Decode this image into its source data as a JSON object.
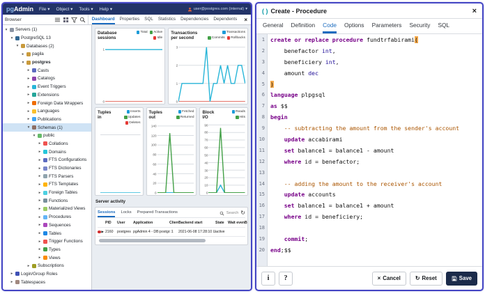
{
  "header": {
    "logo_pg": "pg",
    "logo_admin": "Admin",
    "menus": [
      "File",
      "Object",
      "Tools",
      "Help"
    ],
    "user_label": "user@postgres.com (internal)"
  },
  "browser": {
    "title": "Browser",
    "tabs": [
      "Dashboard",
      "Properties",
      "SQL",
      "Statistics",
      "Dependencies",
      "Dependents"
    ],
    "active_tab": "Dashboard",
    "close": "×"
  },
  "tree": {
    "items": [
      {
        "label": "Servers (1)",
        "depth": 0,
        "state": "o",
        "color": "#8b94a3"
      },
      {
        "label": "PostgreSQL 13",
        "depth": 1,
        "state": "o",
        "color": "#336791"
      },
      {
        "label": "Databases (2)",
        "depth": 2,
        "state": "o",
        "color": "#c99a3c"
      },
      {
        "label": "pagila",
        "depth": 3,
        "state": "c",
        "color": "#c99a3c"
      },
      {
        "label": "postgres",
        "depth": 3,
        "state": "o",
        "color": "#c99a3c",
        "bold": true
      },
      {
        "label": "Casts",
        "depth": 4,
        "state": "c",
        "color": "#5c6bc0"
      },
      {
        "label": "Catalogs",
        "depth": 4,
        "state": "c",
        "color": "#8e44ad"
      },
      {
        "label": "Event Triggers",
        "depth": 4,
        "state": "c",
        "color": "#29b6d8"
      },
      {
        "label": "Extensions",
        "depth": 4,
        "state": "c",
        "color": "#26a69a"
      },
      {
        "label": "Foreign Data Wrappers",
        "depth": 4,
        "state": "c",
        "color": "#ef6c00"
      },
      {
        "label": "Languages",
        "depth": 4,
        "state": "c",
        "color": "#fbc02d"
      },
      {
        "label": "Publications",
        "depth": 4,
        "state": "c",
        "color": "#42a5f5"
      },
      {
        "label": "Schemas (1)",
        "depth": 4,
        "state": "o",
        "color": "#8d6e63",
        "selected": true
      },
      {
        "label": "public",
        "depth": 5,
        "state": "o",
        "color": "#66bb6a"
      },
      {
        "label": "Collations",
        "depth": 6,
        "state": "c",
        "color": "#ef5350"
      },
      {
        "label": "Domains",
        "depth": 6,
        "state": "c",
        "color": "#26c6da"
      },
      {
        "label": "FTS Configurations",
        "depth": 6,
        "state": "c",
        "color": "#5c6bc0"
      },
      {
        "label": "FTS Dictionaries",
        "depth": 6,
        "state": "c",
        "color": "#7986cb"
      },
      {
        "label": "FTS Parsers",
        "depth": 6,
        "state": "c",
        "color": "#90a4ae"
      },
      {
        "label": "FTS Templates",
        "depth": 6,
        "state": "c",
        "color": "#ffb300"
      },
      {
        "label": "Foreign Tables",
        "depth": 6,
        "state": "c",
        "color": "#4dd0e1"
      },
      {
        "label": "Functions",
        "depth": 6,
        "state": "c",
        "color": "#78909c"
      },
      {
        "label": "Materialized Views",
        "depth": 6,
        "state": "c",
        "color": "#9ccc65"
      },
      {
        "label": "Procedures",
        "depth": 6,
        "state": "c",
        "color": "#64b5f6"
      },
      {
        "label": "Sequences",
        "depth": 6,
        "state": "c",
        "color": "#ab47bc"
      },
      {
        "label": "Tables",
        "depth": 6,
        "state": "c",
        "color": "#1e88e5"
      },
      {
        "label": "Trigger Functions",
        "depth": 6,
        "state": "c",
        "color": "#ef5350"
      },
      {
        "label": "Types",
        "depth": 6,
        "state": "c",
        "color": "#43a047"
      },
      {
        "label": "Views",
        "depth": 6,
        "state": "c",
        "color": "#fb8c00"
      },
      {
        "label": "Subscriptions",
        "depth": 4,
        "state": "c",
        "color": "#9e9d24"
      },
      {
        "label": "Login/Group Roles",
        "depth": 1,
        "state": "c",
        "color": "#3f51b5"
      },
      {
        "label": "Tablespaces",
        "depth": 1,
        "state": "c",
        "color": "#a1887f"
      }
    ]
  },
  "dashboard": {
    "charts": [
      {
        "type": "line",
        "title": "Database sessions",
        "legend": [
          {
            "label": "Total",
            "color": "#1d9bd8"
          },
          {
            "label": "Active",
            "color": "#43a047"
          },
          {
            "label": "Idle",
            "color": "#e53935"
          }
        ],
        "ymax": 1.15,
        "ticks": [
          {
            "label": "1",
            "v": 1
          },
          {
            "label": "0",
            "v": 0
          }
        ],
        "series": [
          {
            "name": "Idle",
            "color": "#e57368",
            "values": [
              0,
              0
            ]
          },
          {
            "name": "Total",
            "color": "#27b5d8",
            "values": [
              1,
              1
            ]
          }
        ]
      },
      {
        "type": "line",
        "title": "Transactions per second",
        "legend": [
          {
            "label": "Transactions",
            "color": "#1d9bd8"
          },
          {
            "label": "Commits",
            "color": "#43a047"
          },
          {
            "label": "Rollbacks",
            "color": "#e53935"
          }
        ],
        "ymax": 3.3,
        "ticks": [
          {
            "label": "3",
            "v": 3
          },
          {
            "label": "2",
            "v": 2
          },
          {
            "label": "1",
            "v": 1
          },
          {
            "label": "0",
            "v": 0
          }
        ],
        "series": [
          {
            "name": "Rollbacks",
            "color": "#e57368",
            "values": [
              0,
              0
            ]
          },
          {
            "name": "Transactions",
            "color": "#27b5d8",
            "values": [
              0,
              1,
              1,
              1,
              1,
              1,
              1,
              1,
              3,
              0,
              1,
              1,
              2,
              1,
              2,
              1,
              1,
              2,
              2,
              1
            ]
          }
        ]
      },
      {
        "type": "line",
        "title": "Tuples in",
        "legend": [
          {
            "label": "Inserts",
            "color": "#1d9bd8"
          },
          {
            "label": "Updates",
            "color": "#43a047"
          },
          {
            "label": "Deletes",
            "color": "#e53935"
          }
        ],
        "ymax": 1.15,
        "ticks": [
          {
            "label": "",
            "v": 1
          }
        ],
        "series": [
          {
            "name": "Inserts",
            "color": "#27b5d8",
            "values": [
              0,
              0
            ]
          }
        ]
      },
      {
        "type": "line",
        "title": "Tuples out",
        "legend": [
          {
            "label": "Fetched",
            "color": "#1d9bd8"
          },
          {
            "label": "Returned",
            "color": "#43a047"
          }
        ],
        "ymax": 150,
        "ticks": [
          {
            "label": "140",
            "v": 140
          },
          {
            "label": "120",
            "v": 120
          },
          {
            "label": "100",
            "v": 100
          },
          {
            "label": "80",
            "v": 80
          },
          {
            "label": "60",
            "v": 60
          },
          {
            "label": "40",
            "v": 40
          },
          {
            "label": "20",
            "v": 20
          },
          {
            "label": "0",
            "v": 0
          }
        ],
        "series": [
          {
            "name": "Fetched",
            "color": "#27b5d8",
            "values": [
              0,
              0,
              0,
              0,
              0,
              0,
              0,
              0,
              0,
              0
            ]
          },
          {
            "name": "Returned",
            "color": "#43a047",
            "values": [
              0,
              0,
              0,
              125,
              0,
              0,
              0,
              0,
              0,
              0
            ]
          }
        ]
      },
      {
        "type": "line",
        "title": "Block I/O",
        "legend": [
          {
            "label": "Reads",
            "color": "#1d9bd8"
          },
          {
            "label": "Hits",
            "color": "#43a047"
          }
        ],
        "ymax": 95,
        "ticks": [
          {
            "label": "90",
            "v": 90
          },
          {
            "label": "80",
            "v": 80
          },
          {
            "label": "70",
            "v": 70
          },
          {
            "label": "60",
            "v": 60
          },
          {
            "label": "50",
            "v": 50
          },
          {
            "label": "40",
            "v": 40
          },
          {
            "label": "30",
            "v": 30
          },
          {
            "label": "20",
            "v": 20
          },
          {
            "label": "10",
            "v": 10
          },
          {
            "label": "0",
            "v": 0
          }
        ],
        "series": [
          {
            "name": "Reads",
            "color": "#27b5d8",
            "values": [
              0,
              0,
              0,
              10,
              0,
              0,
              0,
              0,
              0,
              0
            ]
          },
          {
            "name": "Hits",
            "color": "#43a047",
            "values": [
              0,
              0,
              0,
              86,
              0,
              0,
              0,
              0,
              0,
              0
            ]
          }
        ]
      }
    ],
    "server_activity": {
      "title": "Server activity",
      "tabs": [
        "Sessions",
        "Locks",
        "Prepared Transactions"
      ],
      "active_tab": "Sessions",
      "search_label": "Search",
      "refresh": "↻",
      "columns": [
        "PID",
        "User",
        "Application",
        "Client",
        "Backend start",
        "State",
        "Wait event",
        "Bl"
      ],
      "rows": [
        [
          "2160",
          "postgres",
          "pgAdmin 4 - DB:postgres",
          "::1",
          "2021-06-08 17:28:10 UTC",
          "active",
          "",
          ""
        ]
      ]
    }
  },
  "dialog": {
    "icon": "( )",
    "title": "Create - Procedure",
    "close": "×",
    "tabs": [
      "General",
      "Definition",
      "Code",
      "Options",
      "Parameters",
      "Security",
      "SQL"
    ],
    "active_tab": "Code",
    "code": {
      "lines": [
        [
          {
            "x": "create or replace procedure",
            "c": "k"
          },
          {
            "x": " fundtrfabirami",
            "c": "p"
          },
          {
            "x": "(",
            "c": "b"
          }
        ],
        [
          {
            "x": "    benefactor ",
            "c": "p"
          },
          {
            "x": "int",
            "c": "t"
          },
          {
            "x": ",",
            "c": "p"
          }
        ],
        [
          {
            "x": "    beneficiery ",
            "c": "p"
          },
          {
            "x": "int",
            "c": "t"
          },
          {
            "x": ",",
            "c": "p"
          }
        ],
        [
          {
            "x": "    amount ",
            "c": "p"
          },
          {
            "x": "dec",
            "c": "t"
          }
        ],
        [
          {
            "x": ")",
            "c": "b"
          }
        ],
        [
          {
            "x": "language",
            "c": "k"
          },
          {
            "x": " plpgsql",
            "c": "p"
          }
        ],
        [
          {
            "x": "as",
            "c": "k"
          },
          {
            "x": " $$",
            "c": "p"
          }
        ],
        [
          {
            "x": "begin",
            "c": "k"
          }
        ],
        [
          {
            "x": "    -- subtracting the amount from the sender's account",
            "c": "c"
          }
        ],
        [
          {
            "x": "    ",
            "c": "p"
          },
          {
            "x": "update",
            "c": "k"
          },
          {
            "x": " accabirami",
            "c": "p"
          }
        ],
        [
          {
            "x": "    ",
            "c": "p"
          },
          {
            "x": "set",
            "c": "k"
          },
          {
            "x": " balance1 = balance1 - amount",
            "c": "p"
          }
        ],
        [
          {
            "x": "    ",
            "c": "p"
          },
          {
            "x": "where",
            "c": "k"
          },
          {
            "x": " id = benefactor;",
            "c": "p"
          }
        ],
        [],
        [
          {
            "x": "    -- adding the amount to the receiver's account",
            "c": "c"
          }
        ],
        [
          {
            "x": "    ",
            "c": "p"
          },
          {
            "x": "update",
            "c": "k"
          },
          {
            "x": " accounts",
            "c": "p"
          }
        ],
        [
          {
            "x": "    ",
            "c": "p"
          },
          {
            "x": "set",
            "c": "k"
          },
          {
            "x": " balance1 = balance1 + amount",
            "c": "p"
          }
        ],
        [
          {
            "x": "    ",
            "c": "p"
          },
          {
            "x": "where",
            "c": "k"
          },
          {
            "x": " id = beneficiery;",
            "c": "p"
          }
        ],
        [],
        [
          {
            "x": "    ",
            "c": "p"
          },
          {
            "x": "commit",
            "c": "k"
          },
          {
            "x": ";",
            "c": "p"
          }
        ],
        [
          {
            "x": "end",
            "c": "k"
          },
          {
            "x": ";$$",
            "c": "p"
          }
        ]
      ]
    },
    "footer": {
      "info": "i",
      "help": "?",
      "cancel": "Cancel",
      "reset": "Reset",
      "save": "Save"
    }
  }
}
